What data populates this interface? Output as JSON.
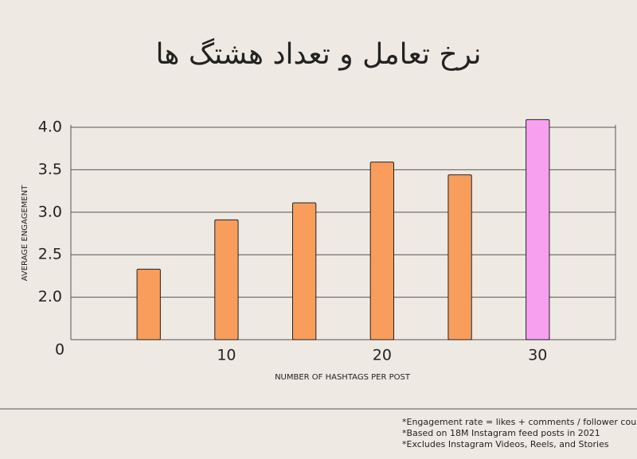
{
  "chart_data": {
    "type": "bar",
    "title": "نرخ تعامل و تعداد هشتگ ها",
    "x_label": "NUMBER OF HASHTAGS PER POST",
    "y_label": "AVERAGE ENGAGEMENT",
    "origin_label": "0",
    "x": [
      5,
      10,
      15,
      20,
      25,
      30
    ],
    "values": [
      2.33,
      2.91,
      3.11,
      3.59,
      3.44,
      4.09
    ],
    "colors": [
      "#f99d5c",
      "#f99d5c",
      "#f99d5c",
      "#f99d5c",
      "#f99d5c",
      "#f7a0f0"
    ],
    "xlim": [
      0,
      35
    ],
    "xticks": [
      10,
      20,
      30
    ],
    "ylim": [
      1.5,
      4.0
    ],
    "yticks": [
      {
        "value": 2,
        "label": "2.0"
      },
      {
        "value": 2.5,
        "label": "2.5"
      },
      {
        "value": 3,
        "label": "3.0"
      },
      {
        "value": 3.5,
        "label": "3.5"
      },
      {
        "value": 4,
        "label": "4.0"
      }
    ],
    "grid": true,
    "notes": [
      "*Engagement rate = likes + comments / follower count",
      "*Based on 18M Instagram feed posts in 2021",
      "*Excludes Instagram Videos, Reels, and Stories"
    ]
  }
}
